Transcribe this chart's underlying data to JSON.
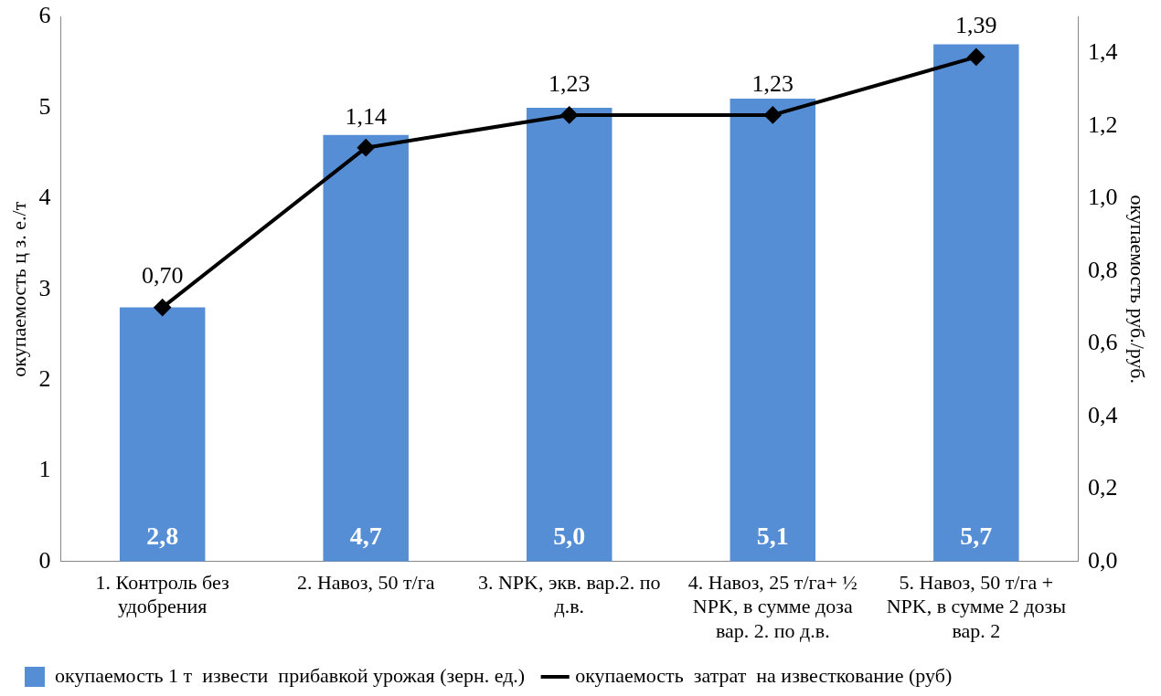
{
  "chart_data": {
    "type": "bar",
    "ylabel": "окупаемость ц з. е./т",
    "y2label": "окупаемость руб./руб.",
    "categories": [
      "1. Контроль без удобрения",
      "2. Навоз, 50 т/га",
      "3. NPK, экв. вар.2. по д.в.",
      "4. Навоз, 25 т/га+ ½ NPK, в сумме доза вар. 2. по д.в.",
      "5. Навоз, 50 т/га + NPK, в сумме 2 дозы вар. 2"
    ],
    "series": [
      {
        "name": "окупаемость 1 т  извести  прибавкой урожая (зерн. ед.)",
        "color": "#558ed5",
        "values": [
          2.8,
          4.7,
          5.0,
          5.1,
          5.7
        ],
        "value_labels": [
          "2,8",
          "4,7",
          "5,0",
          "5,1",
          "5,7"
        ]
      },
      {
        "name": "окупаемость  затрат  на известкование (руб)",
        "type": "line",
        "axis": "y2",
        "color": "#000000",
        "values": [
          0.7,
          1.14,
          1.23,
          1.23,
          1.39
        ],
        "value_labels": [
          "0,70",
          "1,14",
          "1,23",
          "1,23",
          "1,39"
        ]
      }
    ],
    "ylim": [
      0,
      6
    ],
    "yticks": [
      0,
      1,
      2,
      3,
      4,
      5,
      6
    ],
    "y2lim": [
      0,
      1.5
    ],
    "y2ticks": [
      {
        "value": 0,
        "label": "0,0"
      },
      {
        "value": 0.2,
        "label": "0,2"
      },
      {
        "value": 0.4,
        "label": "0,4"
      },
      {
        "value": 0.6,
        "label": "0,6"
      },
      {
        "value": 0.8,
        "label": "0,8"
      },
      {
        "value": 1.0,
        "label": "1,0"
      },
      {
        "value": 1.2,
        "label": "1,2"
      },
      {
        "value": 1.4,
        "label": "1,4"
      }
    ],
    "grid": false,
    "legend": "bottom",
    "marker": "diamond",
    "line_style": "solid"
  }
}
